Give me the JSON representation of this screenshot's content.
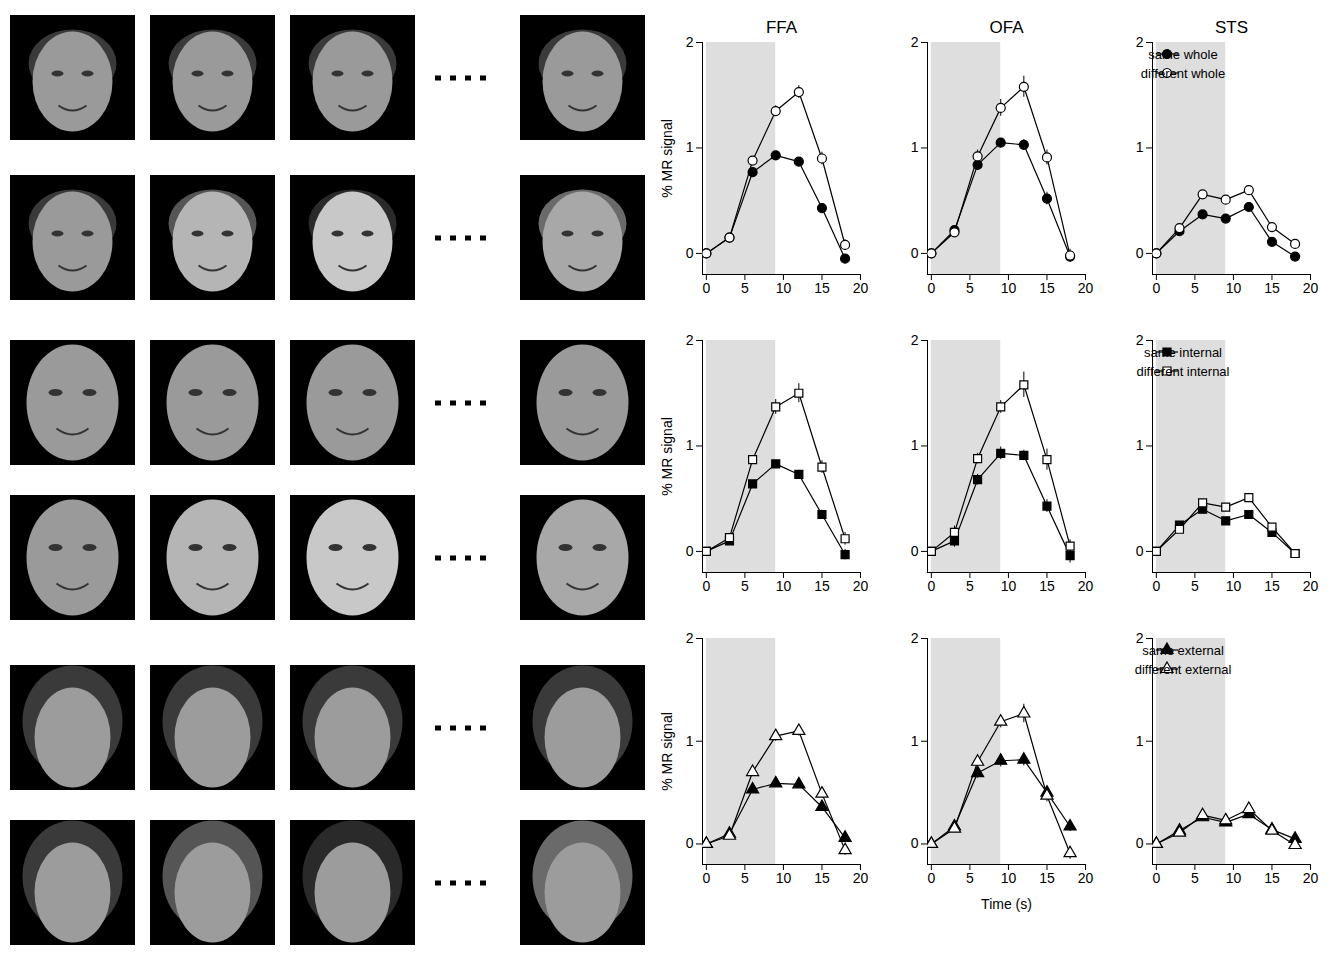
{
  "chart_data": [
    {
      "type": "line",
      "title": "FFA",
      "y_label": "% MR signal",
      "x": [
        0,
        3,
        6,
        9,
        12,
        15,
        18
      ],
      "xlim": [
        -0.5,
        20
      ],
      "xticks": [
        0,
        5,
        10,
        15,
        20
      ],
      "ylim": [
        -0.2,
        2
      ],
      "yticks": [
        0,
        1,
        2
      ],
      "shaded_x": [
        0,
        9
      ],
      "series": [
        {
          "name": "same whole",
          "color": "#000000",
          "marker": "circle",
          "values": [
            0,
            0.15,
            0.77,
            0.93,
            0.87,
            0.43,
            -0.05
          ],
          "errors": [
            0,
            0.03,
            0.04,
            0.03,
            0.03,
            0.03,
            0.04
          ]
        },
        {
          "name": "different whole",
          "color": "#000000",
          "marker": "open_circle",
          "values": [
            0,
            0.15,
            0.88,
            1.35,
            1.53,
            0.9,
            0.08
          ],
          "errors": [
            0,
            0.03,
            0.03,
            0.05,
            0.06,
            0.06,
            0.05
          ]
        }
      ]
    },
    {
      "type": "line",
      "title": "OFA",
      "x": [
        0,
        3,
        6,
        9,
        12,
        15,
        18
      ],
      "xlim": [
        -0.5,
        20
      ],
      "xticks": [
        0,
        5,
        10,
        15,
        20
      ],
      "ylim": [
        -0.2,
        2
      ],
      "yticks": [
        0,
        1,
        2
      ],
      "shaded_x": [
        0,
        9
      ],
      "series": [
        {
          "name": "same whole",
          "color": "#000000",
          "marker": "circle",
          "values": [
            0,
            0.22,
            0.84,
            1.05,
            1.03,
            0.52,
            -0.03
          ],
          "errors": [
            0,
            0.04,
            0.04,
            0.04,
            0.05,
            0.06,
            0.05
          ]
        },
        {
          "name": "different whole",
          "color": "#000000",
          "marker": "open_circle",
          "values": [
            0,
            0.2,
            0.92,
            1.38,
            1.58,
            0.91,
            -0.02
          ],
          "errors": [
            0,
            0.04,
            0.06,
            0.08,
            0.1,
            0.07,
            0.06
          ]
        }
      ]
    },
    {
      "type": "line",
      "title": "STS",
      "legend": "top-left",
      "x": [
        0,
        3,
        6,
        9,
        12,
        15,
        18
      ],
      "xlim": [
        -0.5,
        20
      ],
      "xticks": [
        0,
        5,
        10,
        15,
        20
      ],
      "ylim": [
        -0.2,
        2
      ],
      "yticks": [
        0,
        1,
        2
      ],
      "shaded_x": [
        0,
        9
      ],
      "series": [
        {
          "name": "same whole",
          "color": "#000000",
          "marker": "circle",
          "values": [
            0,
            0.21,
            0.37,
            0.33,
            0.44,
            0.11,
            -0.03
          ],
          "errors": [
            0,
            0.02,
            0.02,
            0.02,
            0.02,
            0.02,
            0.02
          ]
        },
        {
          "name": "different whole",
          "color": "#000000",
          "marker": "open_circle",
          "values": [
            0,
            0.24,
            0.56,
            0.51,
            0.6,
            0.25,
            0.09
          ],
          "errors": [
            0,
            0.02,
            0.02,
            0.02,
            0.02,
            0.02,
            0.02
          ]
        }
      ]
    },
    {
      "type": "line",
      "y_label": "% MR signal",
      "x": [
        0,
        3,
        6,
        9,
        12,
        15,
        18
      ],
      "xlim": [
        -0.5,
        20
      ],
      "xticks": [
        0,
        5,
        10,
        15,
        20
      ],
      "ylim": [
        -0.2,
        2
      ],
      "yticks": [
        0,
        1,
        2
      ],
      "shaded_x": [
        0,
        9
      ],
      "series": [
        {
          "name": "same internal",
          "color": "#000000",
          "marker": "square",
          "values": [
            0,
            0.1,
            0.64,
            0.83,
            0.73,
            0.35,
            -0.03
          ],
          "errors": [
            0,
            0.03,
            0.03,
            0.03,
            0.03,
            0.04,
            0.05
          ]
        },
        {
          "name": "different internal",
          "color": "#000000",
          "marker": "open_square",
          "values": [
            0,
            0.13,
            0.87,
            1.37,
            1.5,
            0.8,
            0.12
          ],
          "errors": [
            0,
            0.03,
            0.03,
            0.07,
            0.09,
            0.06,
            0.06
          ]
        }
      ]
    },
    {
      "type": "line",
      "x": [
        0,
        3,
        6,
        9,
        12,
        15,
        18
      ],
      "xlim": [
        -0.5,
        20
      ],
      "xticks": [
        0,
        5,
        10,
        15,
        20
      ],
      "ylim": [
        -0.2,
        2
      ],
      "yticks": [
        0,
        1,
        2
      ],
      "shaded_x": [
        0,
        9
      ],
      "series": [
        {
          "name": "same internal",
          "color": "#000000",
          "marker": "square",
          "values": [
            0,
            0.1,
            0.68,
            0.93,
            0.91,
            0.43,
            -0.04
          ],
          "errors": [
            0,
            0.06,
            0.05,
            0.06,
            0.05,
            0.06,
            0.07
          ]
        },
        {
          "name": "different internal",
          "color": "#000000",
          "marker": "open_square",
          "values": [
            0,
            0.18,
            0.88,
            1.37,
            1.58,
            0.87,
            0.05
          ],
          "errors": [
            0,
            0.06,
            0.05,
            0.06,
            0.12,
            0.1,
            0.06
          ]
        }
      ]
    },
    {
      "type": "line",
      "legend": "top-left",
      "x": [
        0,
        3,
        6,
        9,
        12,
        15,
        18
      ],
      "xlim": [
        -0.5,
        20
      ],
      "xticks": [
        0,
        5,
        10,
        15,
        20
      ],
      "ylim": [
        -0.2,
        2
      ],
      "yticks": [
        0,
        1,
        2
      ],
      "shaded_x": [
        0,
        9
      ],
      "series": [
        {
          "name": "same internal",
          "color": "#000000",
          "marker": "square",
          "values": [
            0,
            0.25,
            0.4,
            0.29,
            0.35,
            0.18,
            -0.02
          ],
          "errors": [
            0,
            0.02,
            0.02,
            0.02,
            0.02,
            0.02,
            0.03
          ]
        },
        {
          "name": "different internal",
          "color": "#000000",
          "marker": "open_square",
          "values": [
            0,
            0.21,
            0.46,
            0.42,
            0.51,
            0.23,
            -0.02
          ],
          "errors": [
            0,
            0.02,
            0.02,
            0.02,
            0.02,
            0.02,
            0.03
          ]
        }
      ]
    },
    {
      "type": "line",
      "y_label": "% MR signal",
      "x": [
        0,
        3,
        6,
        9,
        12,
        15,
        18
      ],
      "xlim": [
        -0.5,
        20
      ],
      "xticks": [
        0,
        5,
        10,
        15,
        20
      ],
      "ylim": [
        -0.2,
        2
      ],
      "yticks": [
        0,
        1,
        2
      ],
      "shaded_x": [
        0,
        9
      ],
      "series": [
        {
          "name": "same external",
          "color": "#000000",
          "marker": "triangle",
          "values": [
            0,
            0.1,
            0.53,
            0.59,
            0.58,
            0.36,
            0.06
          ],
          "errors": [
            0,
            0.03,
            0.03,
            0.03,
            0.03,
            0.03,
            0.04
          ]
        },
        {
          "name": "different external",
          "color": "#000000",
          "marker": "open_triangle",
          "values": [
            0,
            0.08,
            0.7,
            1.05,
            1.1,
            0.49,
            -0.06
          ],
          "errors": [
            0,
            0.03,
            0.03,
            0.05,
            0.05,
            0.04,
            0.05
          ]
        }
      ]
    },
    {
      "type": "line",
      "x_label": "Time (s)",
      "x": [
        0,
        3,
        6,
        9,
        12,
        15,
        18
      ],
      "xlim": [
        -0.5,
        20
      ],
      "xticks": [
        0,
        5,
        10,
        15,
        20
      ],
      "ylim": [
        -0.2,
        2
      ],
      "yticks": [
        0,
        1,
        2
      ],
      "shaded_x": [
        0,
        9
      ],
      "series": [
        {
          "name": "same external",
          "color": "#000000",
          "marker": "triangle",
          "values": [
            0,
            0.17,
            0.69,
            0.81,
            0.82,
            0.5,
            0.17
          ],
          "errors": [
            0,
            0.04,
            0.05,
            0.06,
            0.06,
            0.05,
            0.05
          ]
        },
        {
          "name": "different external",
          "color": "#000000",
          "marker": "open_triangle",
          "values": [
            0,
            0.15,
            0.8,
            1.19,
            1.27,
            0.47,
            -0.09
          ],
          "errors": [
            0,
            0.04,
            0.05,
            0.06,
            0.09,
            0.06,
            0.06
          ]
        }
      ]
    },
    {
      "type": "line",
      "legend": "top-left",
      "x": [
        0,
        3,
        6,
        9,
        12,
        15,
        18
      ],
      "xlim": [
        -0.5,
        20
      ],
      "xticks": [
        0,
        5,
        10,
        15,
        20
      ],
      "ylim": [
        -0.2,
        2
      ],
      "yticks": [
        0,
        1,
        2
      ],
      "shaded_x": [
        0,
        9
      ],
      "series": [
        {
          "name": "same external",
          "color": "#000000",
          "marker": "triangle",
          "values": [
            0,
            0.13,
            0.26,
            0.21,
            0.29,
            0.14,
            0.05
          ],
          "errors": [
            0,
            0.02,
            0.02,
            0.02,
            0.02,
            0.02,
            0.02
          ]
        },
        {
          "name": "different external",
          "color": "#000000",
          "marker": "open_triangle",
          "values": [
            0,
            0.11,
            0.28,
            0.23,
            0.34,
            0.13,
            -0.01
          ],
          "errors": [
            0,
            0.02,
            0.02,
            0.02,
            0.02,
            0.02,
            0.02
          ]
        }
      ]
    }
  ]
}
